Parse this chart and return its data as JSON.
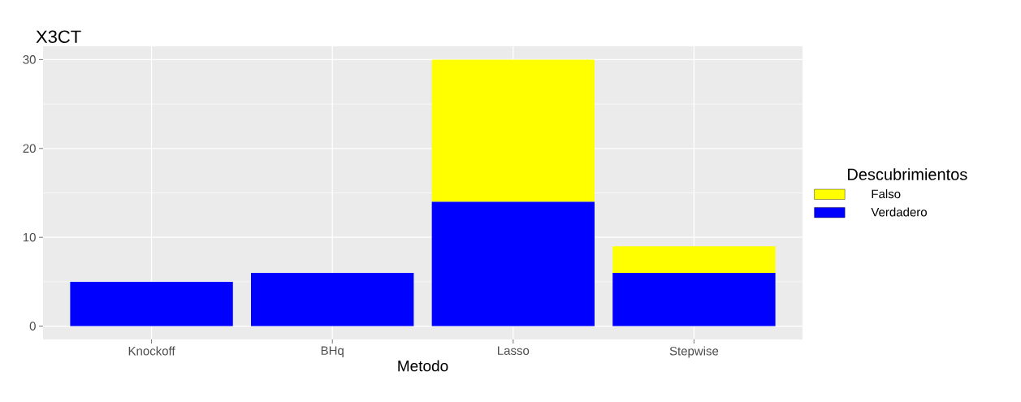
{
  "chart_data": {
    "type": "bar",
    "title": "X3CT",
    "xlabel": "Metodo",
    "legend_title": "Descubrimientos",
    "categories": [
      "Knockoff",
      "BHq",
      "Lasso",
      "Stepwise"
    ],
    "series": [
      {
        "name": "Verdadero",
        "color": "#0000ff",
        "values": [
          5,
          6,
          14,
          6
        ]
      },
      {
        "name": "Falso",
        "color": "#ffff00",
        "values": [
          0,
          0,
          16,
          3
        ]
      }
    ],
    "stacked": true,
    "ylim": [
      -1.5,
      31.5
    ],
    "yticks": [
      0,
      10,
      20,
      30
    ],
    "grid": true,
    "legend": "right"
  }
}
